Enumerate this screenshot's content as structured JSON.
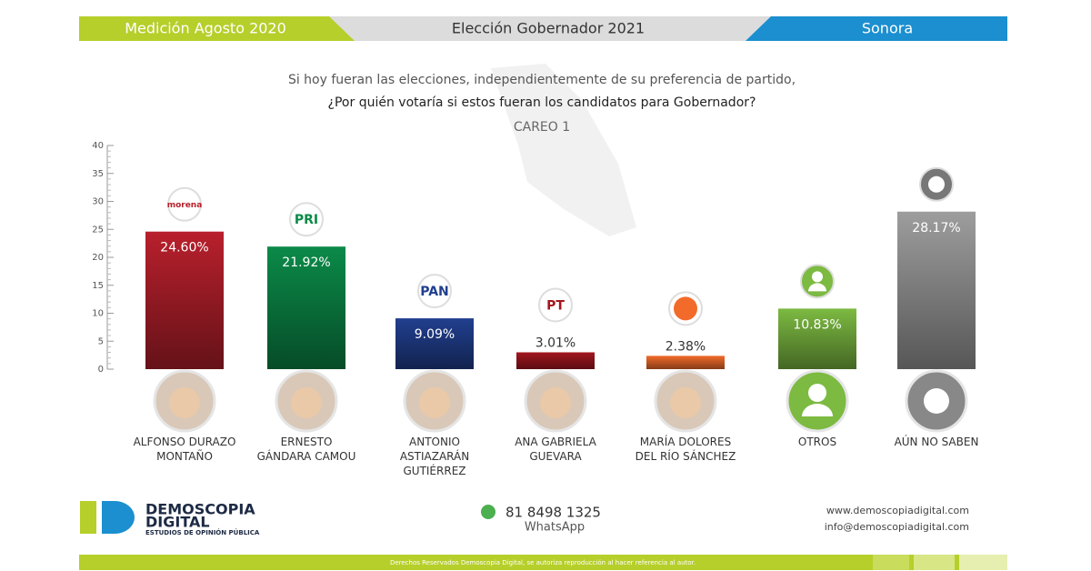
{
  "header": {
    "left": "Medición Agosto 2020",
    "center": "Elección Gobernador 2021",
    "right": "Sonora"
  },
  "question": {
    "line1": "Si hoy fueran las elecciones, independientemente de su preferencia de partido,",
    "line2": "¿Por quién votaría si estos fueran los candidatos para Gobernador?"
  },
  "chart_data": {
    "type": "bar",
    "title": "CAREO 1",
    "categories": [
      "ALFONSO DURAZO MONTAÑO",
      "ERNESTO GÁNDARA CAMOU",
      "ANTONIO ASTIAZARÁN GUTIÉRREZ",
      "ANA GABRIELA GUEVARA",
      "MARÍA DOLORES DEL RÍO SÁNCHEZ",
      "OTROS",
      "AÚN NO SABEN"
    ],
    "values": [
      24.6,
      21.92,
      9.09,
      3.01,
      2.38,
      10.83,
      28.17
    ],
    "value_labels": [
      "24.60%",
      "21.92%",
      "9.09%",
      "3.01%",
      "2.38%",
      "10.83%",
      "28.17%"
    ],
    "colors": [
      "#b8202c",
      "#0b8a48",
      "#213f8f",
      "#a3161f",
      "#f26b2a",
      "#7cba41",
      "#9d9d9d"
    ],
    "logos": [
      "morena",
      "PRI",
      "PAN",
      "PT",
      null,
      null,
      null
    ],
    "ylim": [
      0,
      40
    ],
    "yticks": [
      0,
      5,
      10,
      15,
      20,
      25,
      30,
      35,
      40
    ],
    "grid": false
  },
  "footer": {
    "brand1": "DEMOSCOPIA",
    "brand2": "DIGITAL",
    "tagline": "ESTUDIOS DE OPINIÓN PÚBLICA",
    "phone": "81 8498 1325",
    "phone_label": "WhatsApp",
    "web": "www.demoscopiadigital.com",
    "email": "info@demoscopiadigital.com",
    "copyright": "Derechos Reservados Demoscopia Digital, se autoriza reproducción al hacer referencia al autor."
  }
}
